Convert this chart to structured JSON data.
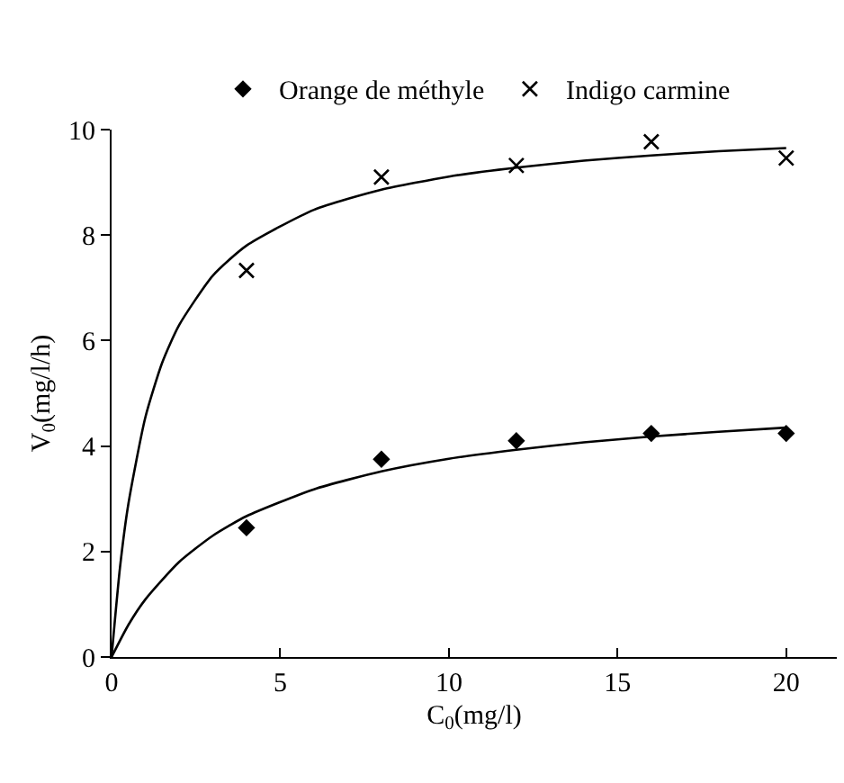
{
  "chart_data": {
    "type": "scatter",
    "xlabel": "C$_{0}$(mg/l)",
    "ylabel": "V$_{0}$(mg/l/h)",
    "xlim": [
      0,
      21.5
    ],
    "xticks": [
      0,
      5,
      10,
      15,
      20
    ],
    "ylim": [
      0,
      10
    ],
    "yticks": [
      0,
      2,
      4,
      6,
      8,
      10
    ],
    "grid": false,
    "legend": "top",
    "series": [
      {
        "name": "Orange de méthyle",
        "marker": "diamond",
        "color": "#000000",
        "x": [
          4,
          8,
          12,
          16,
          20
        ],
        "values": [
          2.45,
          3.75,
          4.1,
          4.24,
          4.24
        ]
      },
      {
        "name": "Indigo carmine",
        "marker": "cross",
        "color": "#000000",
        "x": [
          4,
          8,
          12,
          16,
          20
        ],
        "values": [
          7.33,
          9.1,
          9.32,
          9.77,
          9.46
        ]
      },
      {
        "type": "line",
        "marker": "none",
        "line_style": "solid",
        "color": "#000000",
        "x": [
          0,
          0.5,
          1,
          2,
          3,
          4,
          6,
          8,
          10,
          12,
          14,
          16,
          18,
          20
        ],
        "values": [
          0,
          0.61,
          1.09,
          1.8,
          2.3,
          2.67,
          3.18,
          3.52,
          3.76,
          3.93,
          4.07,
          4.18,
          4.27,
          4.35
        ]
      },
      {
        "type": "line",
        "marker": "none",
        "line_style": "solid",
        "color": "#000000",
        "x": [
          0,
          0.25,
          0.5,
          1,
          1.5,
          2,
          3,
          4,
          6,
          8,
          10,
          12,
          14,
          16,
          18,
          20
        ],
        "values": [
          0,
          1.7,
          2.91,
          4.54,
          5.58,
          6.29,
          7.23,
          7.8,
          8.48,
          8.86,
          9.11,
          9.28,
          9.41,
          9.51,
          9.59,
          9.65
        ]
      }
    ]
  }
}
